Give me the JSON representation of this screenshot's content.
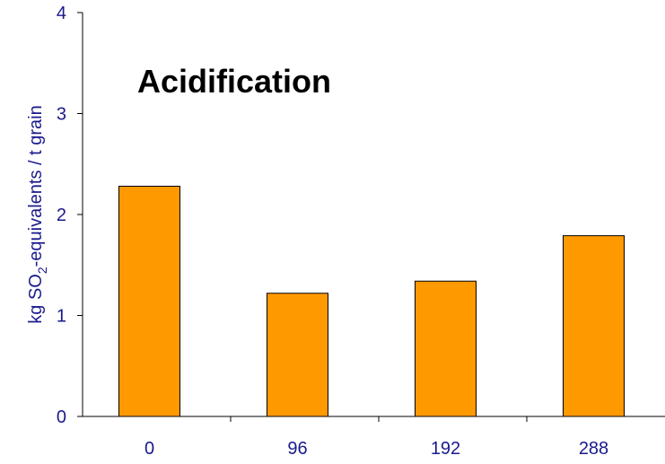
{
  "chart_data": {
    "type": "bar",
    "title": "Acidification",
    "ylabel": {
      "prefix": "kg SO",
      "subscript": "2",
      "suffix": "-equivalents / t grain"
    },
    "xlabel": "",
    "categories": [
      "0",
      "96",
      "192",
      "288"
    ],
    "values": [
      2.28,
      1.22,
      1.34,
      1.79
    ],
    "ylim": [
      0,
      4
    ],
    "yticks": [
      "0",
      "1",
      "2",
      "3",
      "4"
    ],
    "grid": false,
    "legend": "none",
    "colors": {
      "bar_fill": "#FF9900",
      "bar_stroke": "#000000",
      "axis": "#000000",
      "tick_text": "#1a1a8c"
    }
  }
}
